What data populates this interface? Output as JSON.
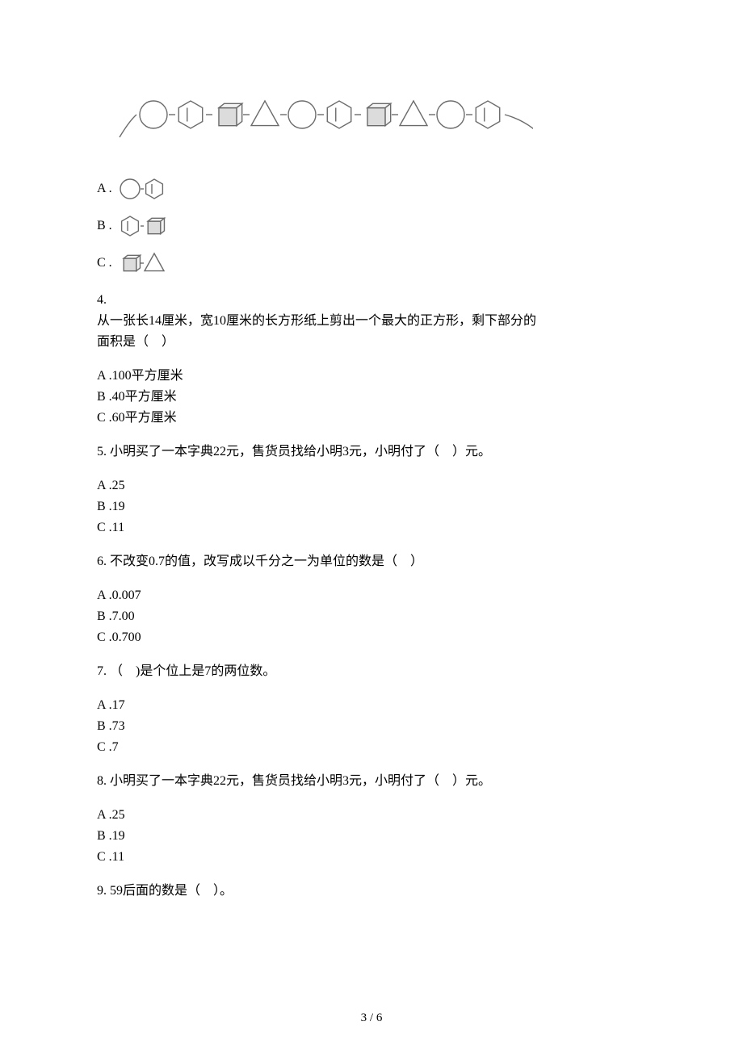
{
  "colors": {
    "text": "#000000",
    "bg": "#ffffff",
    "sketch_stroke": "#6b6b6b",
    "sketch_fill": "#dcdcdc",
    "sketch_fill_light": "#f3f3f3"
  },
  "bead_sequence": {
    "shapes": [
      "circle",
      "hexagon",
      "cube",
      "triangle",
      "circle",
      "hexagon",
      "cube",
      "triangle",
      "circle",
      "hexagon"
    ],
    "stroke_width": 1.4,
    "shape_size": 40
  },
  "q3_options": {
    "A": {
      "label": "A .",
      "shapes": [
        "circle",
        "hexagon"
      ]
    },
    "B": {
      "label": "B .",
      "shapes": [
        "hexagon",
        "cube"
      ]
    },
    "C": {
      "label": "C .",
      "shapes": [
        "cube",
        "triangle"
      ]
    }
  },
  "q4": {
    "num": "4.",
    "text1": "从一张长14厘米，宽10厘米的长方形纸上剪出一个最大的正方形，剩下部分的",
    "text2": "面积是（　）",
    "opts": {
      "A": "A .100平方厘米",
      "B": "B .40平方厘米",
      "C": "C .60平方厘米"
    }
  },
  "q5": {
    "text": "5.  小明买了一本字典22元，售货员找给小明3元，小明付了（　）元。",
    "opts": {
      "A": "A .25",
      "B": "B .19",
      "C": "C .11"
    }
  },
  "q6": {
    "text": "6.  不改变0.7的值，改写成以千分之一为单位的数是（　）",
    "opts": {
      "A": "A .0.007",
      "B": "B .7.00",
      "C": "C .0.700"
    }
  },
  "q7": {
    "text": "7.  （　)是个位上是7的两位数。",
    "opts": {
      "A": "A .17",
      "B": "B .73",
      "C": "C .7"
    }
  },
  "q8": {
    "text": "8.  小明买了一本字典22元，售货员找给小明3元，小明付了（　）元。",
    "opts": {
      "A": "A .25",
      "B": "B .19",
      "C": "C .11"
    }
  },
  "q9": {
    "text": "9.  59后面的数是（　）。"
  },
  "footer": "3 / 6"
}
